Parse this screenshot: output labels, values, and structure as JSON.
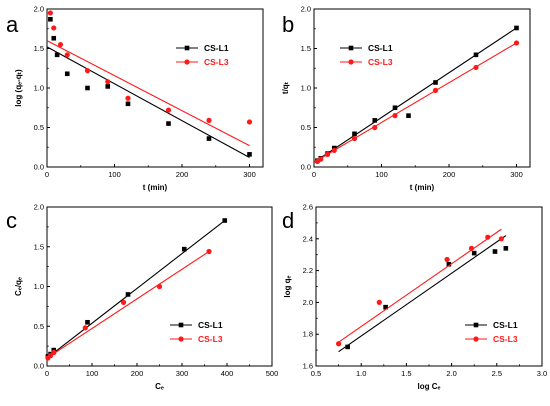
{
  "colors": {
    "cs_l1": "#000000",
    "cs_l3": "#ff1a1a",
    "axis": "#000000"
  },
  "chart_data": [
    {
      "panel": "a",
      "type": "scatter",
      "xlabel": "t (min)",
      "ylabel": "log (qₑ-qₜ)",
      "xlim": [
        0,
        320
      ],
      "ylim": [
        0.0,
        2.0
      ],
      "xticks": [
        "0",
        "100",
        "200",
        "300"
      ],
      "yticks": [
        "0.0",
        "0.5",
        "1.0",
        "1.5",
        "2.0"
      ],
      "legend_position": "top-right",
      "series": [
        {
          "name": "CS-L1",
          "marker": "square",
          "color": "#000000",
          "points": [
            [
              5,
              1.87
            ],
            [
              10,
              1.63
            ],
            [
              15,
              1.42
            ],
            [
              30,
              1.18
            ],
            [
              60,
              1.0
            ],
            [
              90,
              1.02
            ],
            [
              120,
              0.8
            ],
            [
              180,
              0.55
            ],
            [
              240,
              0.36
            ],
            [
              300,
              0.16
            ]
          ],
          "fit": [
            [
              0,
              1.52
            ],
            [
              300,
              0.12
            ]
          ]
        },
        {
          "name": "CS-L3",
          "marker": "circle",
          "color": "#ff1a1a",
          "points": [
            [
              5,
              1.95
            ],
            [
              10,
              1.76
            ],
            [
              20,
              1.55
            ],
            [
              30,
              1.42
            ],
            [
              60,
              1.22
            ],
            [
              90,
              1.08
            ],
            [
              120,
              0.87
            ],
            [
              180,
              0.72
            ],
            [
              240,
              0.59
            ],
            [
              300,
              0.57
            ]
          ],
          "fit": [
            [
              0,
              1.6
            ],
            [
              300,
              0.27
            ]
          ]
        }
      ]
    },
    {
      "panel": "b",
      "type": "scatter",
      "xlabel": "t (min)",
      "ylabel": "t/qₜ",
      "xlim": [
        0,
        320
      ],
      "ylim": [
        0.0,
        2.0
      ],
      "xticks": [
        "0",
        "100",
        "200",
        "300"
      ],
      "yticks": [
        "0.0",
        "0.5",
        "1.0",
        "1.5",
        "2.0"
      ],
      "legend_position": "top-left",
      "series": [
        {
          "name": "CS-L1",
          "marker": "square",
          "color": "#000000",
          "points": [
            [
              5,
              0.08
            ],
            [
              10,
              0.11
            ],
            [
              20,
              0.17
            ],
            [
              30,
              0.24
            ],
            [
              60,
              0.42
            ],
            [
              90,
              0.59
            ],
            [
              120,
              0.75
            ],
            [
              140,
              0.65
            ],
            [
              180,
              1.07
            ],
            [
              240,
              1.42
            ],
            [
              300,
              1.76
            ]
          ],
          "fit": [
            [
              0,
              0.06
            ],
            [
              300,
              1.76
            ]
          ]
        },
        {
          "name": "CS-L3",
          "marker": "circle",
          "color": "#ff1a1a",
          "points": [
            [
              5,
              0.07
            ],
            [
              10,
              0.1
            ],
            [
              20,
              0.16
            ],
            [
              30,
              0.21
            ],
            [
              60,
              0.36
            ],
            [
              90,
              0.5
            ],
            [
              120,
              0.65
            ],
            [
              180,
              0.97
            ],
            [
              240,
              1.26
            ],
            [
              300,
              1.57
            ]
          ],
          "fit": [
            [
              0,
              0.06
            ],
            [
              300,
              1.57
            ]
          ]
        }
      ]
    },
    {
      "panel": "c",
      "type": "scatter",
      "xlabel": "Cₑ",
      "ylabel": "Cₑ/qₑ",
      "xlim": [
        0,
        500
      ],
      "ylim": [
        0.0,
        2.0
      ],
      "xticks": [
        "0",
        "100",
        "200",
        "300",
        "400",
        "500"
      ],
      "yticks": [
        "0.0",
        "0.5",
        "1.0",
        "1.5",
        "2.0"
      ],
      "legend_position": "bottom-right",
      "series": [
        {
          "name": "CS-L1",
          "marker": "square",
          "color": "#000000",
          "points": [
            [
              2,
              0.12
            ],
            [
              8,
              0.15
            ],
            [
              15,
              0.2
            ],
            [
              90,
              0.55
            ],
            [
              180,
              0.9
            ],
            [
              305,
              1.47
            ],
            [
              395,
              1.83
            ]
          ],
          "fit": [
            [
              0,
              0.1
            ],
            [
              395,
              1.83
            ]
          ]
        },
        {
          "name": "CS-L3",
          "marker": "circle",
          "color": "#ff1a1a",
          "points": [
            [
              2,
              0.1
            ],
            [
              8,
              0.13
            ],
            [
              15,
              0.17
            ],
            [
              85,
              0.48
            ],
            [
              170,
              0.8
            ],
            [
              250,
              1.0
            ],
            [
              360,
              1.44
            ]
          ],
          "fit": [
            [
              0,
              0.1
            ],
            [
              360,
              1.44
            ]
          ]
        }
      ]
    },
    {
      "panel": "d",
      "type": "scatter",
      "xlabel": "log Cₑ",
      "ylabel": "log qₑ",
      "xlim": [
        0.5,
        3.0
      ],
      "ylim": [
        1.6,
        2.6
      ],
      "xticks": [
        "0.5",
        "1.0",
        "1.5",
        "2.0",
        "2.5",
        "3.0"
      ],
      "yticks": [
        "1.6",
        "1.8",
        "2.0",
        "2.2",
        "2.4",
        "2.6"
      ],
      "legend_position": "bottom-right",
      "series": [
        {
          "name": "CS-L1",
          "marker": "square",
          "color": "#000000",
          "points": [
            [
              0.85,
              1.72
            ],
            [
              1.27,
              1.97
            ],
            [
              1.97,
              2.24
            ],
            [
              2.25,
              2.31
            ],
            [
              2.48,
              2.32
            ],
            [
              2.6,
              2.34
            ]
          ],
          "fit": [
            [
              0.75,
              1.69
            ],
            [
              2.6,
              2.42
            ]
          ]
        },
        {
          "name": "CS-L3",
          "marker": "circle",
          "color": "#ff1a1a",
          "points": [
            [
              0.75,
              1.74
            ],
            [
              1.2,
              2.0
            ],
            [
              1.95,
              2.27
            ],
            [
              2.22,
              2.34
            ],
            [
              2.4,
              2.41
            ],
            [
              2.55,
              2.4
            ]
          ],
          "fit": [
            [
              0.75,
              1.75
            ],
            [
              2.55,
              2.46
            ]
          ]
        }
      ]
    }
  ]
}
